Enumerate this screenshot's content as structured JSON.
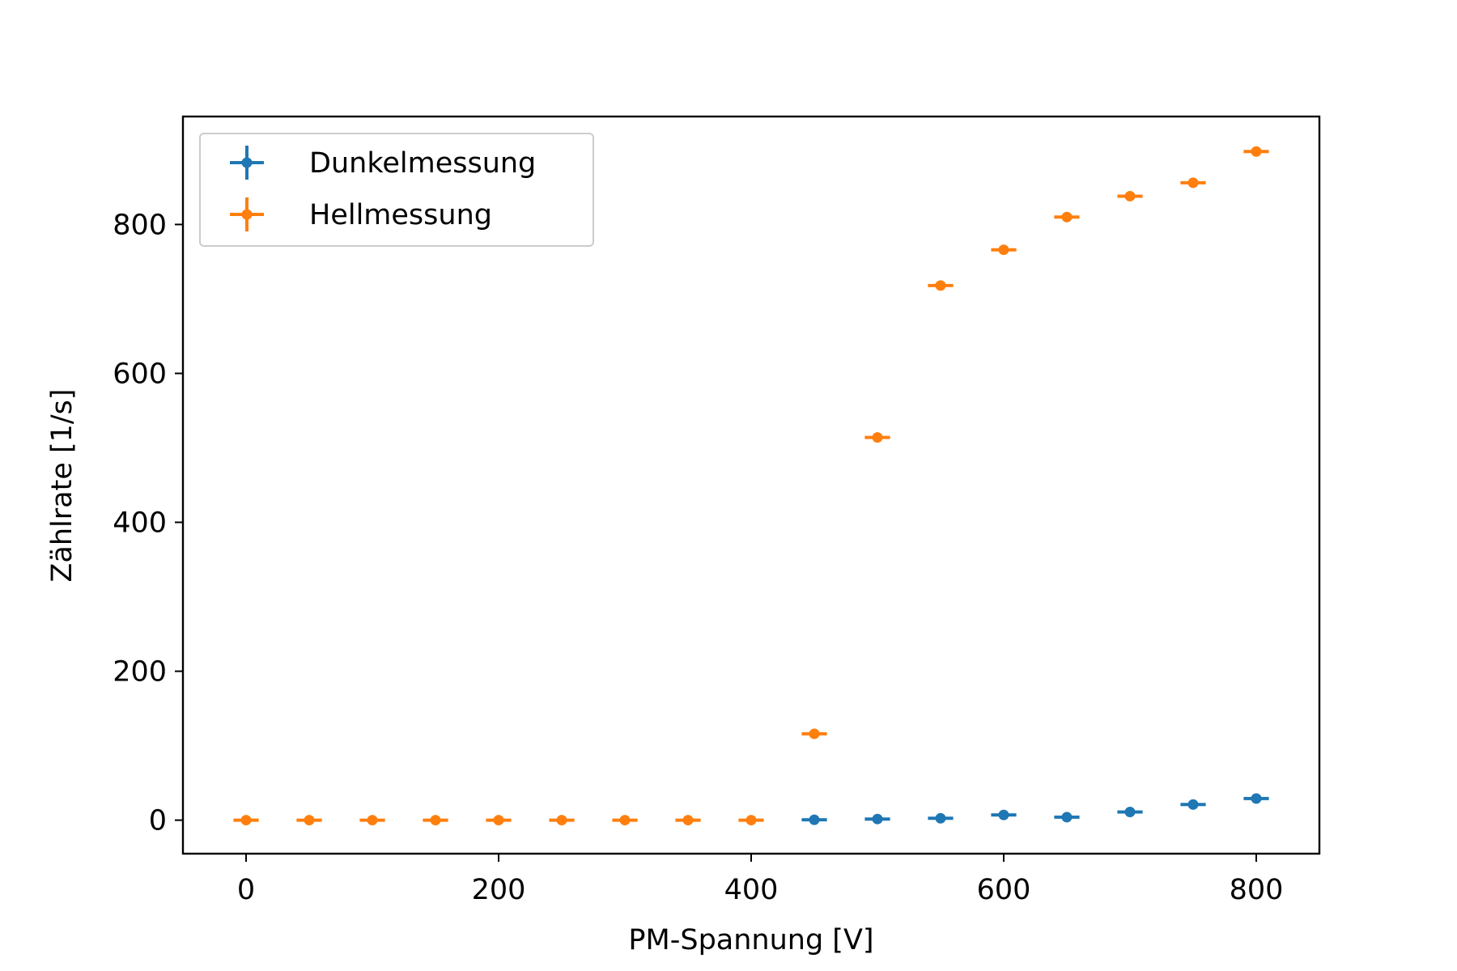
{
  "chart_data": {
    "type": "scatter",
    "xlabel": "PM-Spannung [V]",
    "ylabel": "Zählrate [1/s]",
    "xlim": [
      -50,
      850
    ],
    "ylim": [
      -45,
      945
    ],
    "xticks": [
      0,
      200,
      400,
      600,
      800
    ],
    "yticks": [
      0,
      200,
      400,
      600,
      800
    ],
    "legend_position": "upper-left",
    "x_error": 10,
    "series": [
      {
        "name": "Dunkelmessung",
        "color": "#1f77b4",
        "x": [
          450,
          500,
          550,
          600,
          650,
          700,
          750,
          800
        ],
        "y": [
          0.5,
          1.5,
          2.5,
          7,
          4,
          11,
          21,
          29
        ]
      },
      {
        "name": "Hellmessung",
        "color": "#ff7f0e",
        "x": [
          0,
          50,
          100,
          150,
          200,
          250,
          300,
          350,
          400,
          450,
          500,
          550,
          600,
          650,
          700,
          750,
          800
        ],
        "y": [
          0,
          0,
          0,
          0,
          0,
          0,
          0,
          0,
          0,
          116,
          514,
          718,
          766,
          810,
          838,
          856,
          898
        ]
      }
    ]
  }
}
